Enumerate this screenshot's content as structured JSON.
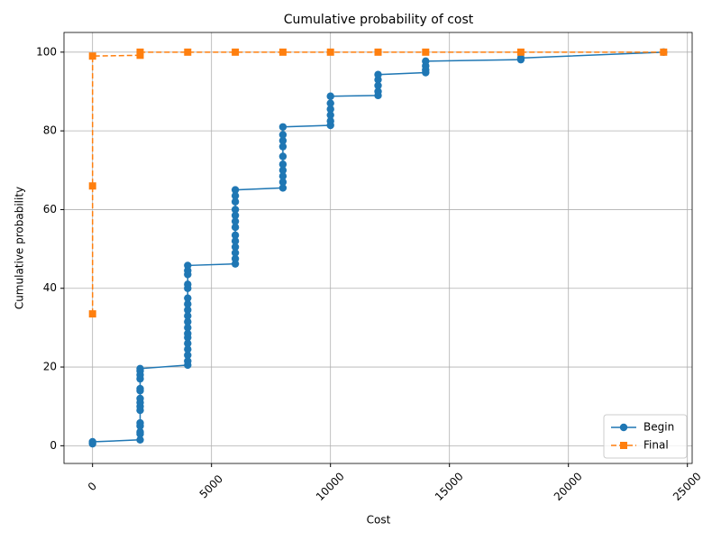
{
  "chart_data": {
    "type": "line",
    "title": "Cumulative probability of cost",
    "x_label": "Cost",
    "y_label": "Cumulative probability",
    "xlim": [
      -1200,
      25200
    ],
    "ylim": [
      -4.5,
      105
    ],
    "xticks": [
      0,
      5000,
      10000,
      15000,
      20000,
      25000
    ],
    "yticks": [
      0,
      20,
      40,
      60,
      80,
      100
    ],
    "grid": true,
    "legend": "lower right",
    "series": [
      {
        "name": "Begin",
        "color": "#1f77b4",
        "linestyle": "solid",
        "marker": "circle",
        "x": [
          0,
          0,
          2000,
          2000,
          2000,
          2000,
          2000,
          2000,
          2000,
          2000,
          2000,
          2000,
          2000,
          2000,
          2000,
          2000,
          2000,
          4000,
          4000,
          4000,
          4000,
          4000,
          4000,
          4000,
          4000,
          4000,
          4000,
          4000,
          4000,
          4000,
          4000,
          4000,
          4000,
          4000,
          4000,
          6000,
          6000,
          6000,
          6000,
          6000,
          6000,
          6000,
          6000,
          6000,
          6000,
          6000,
          6000,
          6000,
          8000,
          8000,
          8000,
          8000,
          8000,
          8000,
          8000,
          8000,
          8000,
          8000,
          10000,
          10000,
          10000,
          10000,
          10000,
          10000,
          12000,
          12000,
          12000,
          12000,
          12000,
          14000,
          14000,
          14000,
          14000,
          18000,
          18000,
          24000
        ],
        "values": [
          0.5,
          1.0,
          1.5,
          3.0,
          3.5,
          5.0,
          5.8,
          9.0,
          10.0,
          11.0,
          12.0,
          14.0,
          14.5,
          17.0,
          18.0,
          19.0,
          19.6,
          20.5,
          21.5,
          23.0,
          24.5,
          26.0,
          27.5,
          28.5,
          30.0,
          31.5,
          33.0,
          34.5,
          36.0,
          37.5,
          40.0,
          41.0,
          43.5,
          44.5,
          45.8,
          46.2,
          47.5,
          49.0,
          50.5,
          52.0,
          53.5,
          55.5,
          57.0,
          58.5,
          60.0,
          62.0,
          63.5,
          65.0,
          65.5,
          67.0,
          68.5,
          70.0,
          71.5,
          73.5,
          76.0,
          77.5,
          79.0,
          81.0,
          81.4,
          82.5,
          84.0,
          85.5,
          87.0,
          88.8,
          89.0,
          90.0,
          91.5,
          93.0,
          94.3,
          94.8,
          95.5,
          96.5,
          97.7,
          98.1,
          98.5,
          100
        ]
      },
      {
        "name": "Final",
        "color": "#ff7f0e",
        "linestyle": "dashed",
        "marker": "square",
        "x": [
          0,
          0,
          0,
          2000,
          2000,
          4000,
          6000,
          8000,
          10000,
          12000,
          14000,
          18000,
          24000
        ],
        "values": [
          33.5,
          66.0,
          99.0,
          99.2,
          100,
          100,
          100,
          100,
          100,
          100,
          100,
          100,
          100
        ]
      }
    ]
  }
}
